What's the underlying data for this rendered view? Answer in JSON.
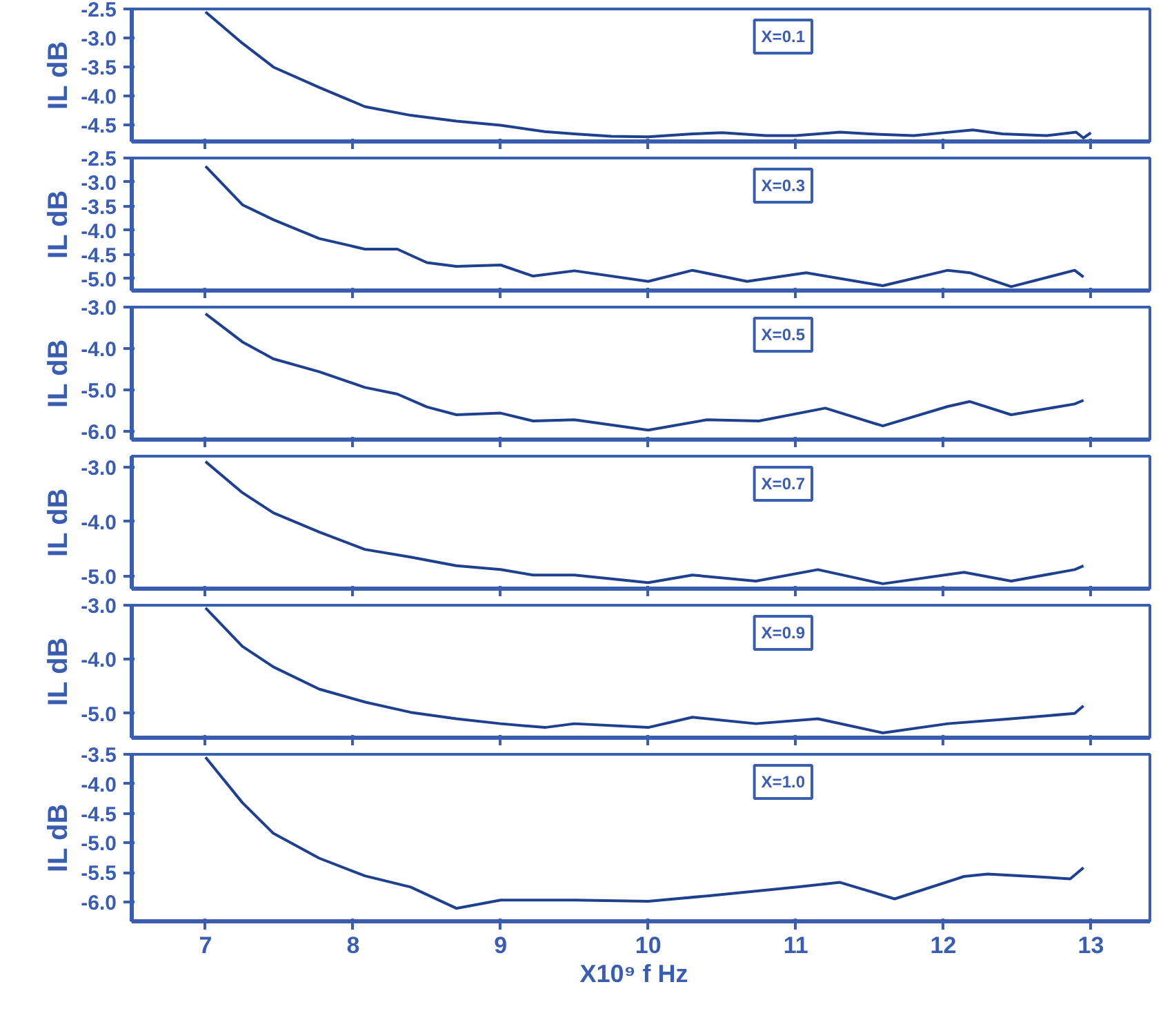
{
  "chart_data": [
    {
      "type": "line",
      "ylabel": "IL dB",
      "annotations": [
        "X=0.1"
      ],
      "tick_labels": "y",
      "xlim": [
        6.5,
        13.4
      ],
      "xticks": [
        7,
        8,
        9,
        10,
        11,
        12,
        13
      ],
      "ylim": [
        -4.78,
        -2.5
      ],
      "yticks": [
        -2.5,
        {
          "value": -3,
          "label": "-3.0"
        },
        -3.5,
        {
          "value": -4,
          "label": "-4.0"
        },
        -4.5
      ],
      "grid": false,
      "series": [
        {
          "color": "#1f3f8f",
          "x": [
            7.0,
            7.25,
            7.46,
            7.77,
            8.08,
            8.39,
            8.7,
            9.0,
            9.3,
            9.5,
            9.75,
            10.0,
            10.3,
            10.5,
            10.8,
            11.0,
            11.3,
            11.5,
            11.8,
            12.0,
            12.2,
            12.4,
            12.7,
            12.9,
            12.95,
            13.0
          ],
          "values": [
            -2.55,
            -3.09,
            -3.5,
            -3.85,
            -4.18,
            -4.33,
            -4.43,
            -4.5,
            -4.61,
            -4.65,
            -4.69,
            -4.7,
            -4.65,
            -4.63,
            -4.68,
            -4.68,
            -4.62,
            -4.65,
            -4.68,
            -4.63,
            -4.58,
            -4.65,
            -4.68,
            -4.62,
            -4.72,
            -4.63
          ]
        }
      ]
    },
    {
      "type": "line",
      "ylabel": "IL dB",
      "annotations": [
        "X=0.3"
      ],
      "tick_labels": "y",
      "xlim": [
        6.5,
        13.4
      ],
      "xticks": [
        7,
        8,
        9,
        10,
        11,
        12,
        13
      ],
      "ylim": [
        -5.25,
        -2.5
      ],
      "yticks": [
        -2.5,
        {
          "value": -3,
          "label": "-3.0"
        },
        -3.5,
        {
          "value": -4,
          "label": "-4.0"
        },
        -4.5,
        {
          "value": -5,
          "label": "-5.0"
        }
      ],
      "grid": false,
      "series": [
        {
          "color": "#1f3f8f",
          "x": [
            7.0,
            7.25,
            7.46,
            7.77,
            8.08,
            8.3,
            8.5,
            8.7,
            9.0,
            9.22,
            9.5,
            10.0,
            10.3,
            10.67,
            11.07,
            11.59,
            12.03,
            12.18,
            12.46,
            12.89,
            12.95
          ],
          "values": [
            -2.67,
            -3.47,
            -3.78,
            -4.17,
            -4.39,
            -4.39,
            -4.67,
            -4.75,
            -4.72,
            -4.95,
            -4.84,
            -5.06,
            -4.83,
            -5.06,
            -4.88,
            -5.15,
            -4.83,
            -4.88,
            -5.17,
            -4.83,
            -4.97
          ]
        }
      ]
    },
    {
      "type": "line",
      "ylabel": "IL dB",
      "annotations": [
        "X=0.5"
      ],
      "tick_labels": "y",
      "xlim": [
        6.5,
        13.4
      ],
      "xticks": [
        7,
        8,
        9,
        10,
        11,
        12,
        13
      ],
      "ylim": [
        -6.2,
        -3.0
      ],
      "yticks": [
        {
          "value": -3,
          "label": "-3.0"
        },
        {
          "value": -4,
          "label": "-4.0"
        },
        {
          "value": -5,
          "label": "-5.0"
        },
        {
          "value": -6,
          "label": "-6.0"
        }
      ],
      "grid": false,
      "series": [
        {
          "color": "#1f3f8f",
          "x": [
            7.0,
            7.25,
            7.46,
            7.77,
            8.08,
            8.3,
            8.5,
            8.7,
            9.0,
            9.22,
            9.5,
            10.0,
            10.4,
            10.75,
            11.2,
            11.59,
            12.03,
            12.18,
            12.46,
            12.89,
            12.95
          ],
          "values": [
            -3.16,
            -3.84,
            -4.25,
            -4.56,
            -4.94,
            -5.1,
            -5.41,
            -5.6,
            -5.56,
            -5.75,
            -5.72,
            -5.97,
            -5.72,
            -5.75,
            -5.44,
            -5.87,
            -5.4,
            -5.28,
            -5.6,
            -5.34,
            -5.25
          ]
        }
      ]
    },
    {
      "type": "line",
      "ylabel": "IL dB",
      "annotations": [
        "X=0.7"
      ],
      "tick_labels": "y",
      "xlim": [
        6.5,
        13.4
      ],
      "xticks": [
        7,
        8,
        9,
        10,
        11,
        12,
        13
      ],
      "ylim": [
        -5.23,
        -2.8
      ],
      "yticks": [
        {
          "value": -3,
          "label": "-3.0"
        },
        {
          "value": -4,
          "label": "-4.0"
        },
        {
          "value": -5,
          "label": "-5.0"
        }
      ],
      "grid": false,
      "series": [
        {
          "color": "#1f3f8f",
          "x": [
            7.0,
            7.25,
            7.46,
            7.77,
            8.08,
            8.39,
            8.7,
            9.0,
            9.22,
            9.5,
            10.0,
            10.3,
            10.73,
            11.15,
            11.59,
            12.14,
            12.46,
            12.89,
            12.95
          ],
          "values": [
            -2.9,
            -3.47,
            -3.84,
            -4.19,
            -4.51,
            -4.65,
            -4.81,
            -4.88,
            -4.98,
            -4.98,
            -5.12,
            -4.98,
            -5.09,
            -4.88,
            -5.14,
            -4.93,
            -5.09,
            -4.88,
            -4.81
          ]
        }
      ]
    },
    {
      "type": "line",
      "ylabel": "IL dB",
      "annotations": [
        "X=0.9"
      ],
      "tick_labels": "y",
      "xlim": [
        6.5,
        13.4
      ],
      "xticks": [
        7,
        8,
        9,
        10,
        11,
        12,
        13
      ],
      "ylim": [
        -5.45,
        -3.0
      ],
      "yticks": [
        {
          "value": -3,
          "label": "-3.0"
        },
        {
          "value": -4,
          "label": "-4.0"
        },
        {
          "value": -5,
          "label": "-5.0"
        }
      ],
      "grid": false,
      "series": [
        {
          "color": "#1f3f8f",
          "x": [
            7.0,
            7.25,
            7.46,
            7.77,
            8.08,
            8.39,
            8.7,
            9.0,
            9.3,
            9.5,
            10.0,
            10.3,
            10.73,
            11.15,
            11.59,
            12.03,
            12.46,
            12.89,
            12.95
          ],
          "values": [
            -3.05,
            -3.76,
            -4.14,
            -4.55,
            -4.79,
            -4.98,
            -5.1,
            -5.19,
            -5.26,
            -5.19,
            -5.26,
            -5.07,
            -5.19,
            -5.1,
            -5.36,
            -5.19,
            -5.1,
            -5.0,
            -4.86
          ]
        }
      ]
    },
    {
      "type": "line",
      "ylabel": "IL dB",
      "xlabel": "X10⁹  f  Hz",
      "annotations": [
        "X=1.0"
      ],
      "xlim": [
        6.5,
        13.4
      ],
      "xticks": [
        7,
        8,
        9,
        10,
        11,
        12,
        13
      ],
      "ylim": [
        -6.33,
        -3.5
      ],
      "yticks": [
        -3.5,
        {
          "value": -4,
          "label": "-4.0"
        },
        -4.5,
        {
          "value": -5,
          "label": "-5.0"
        },
        -5.5,
        {
          "value": -6,
          "label": "-6.0"
        }
      ],
      "grid": false,
      "series": [
        {
          "color": "#1f3f8f",
          "x": [
            7.0,
            7.25,
            7.46,
            7.77,
            8.08,
            8.39,
            8.7,
            9.0,
            9.5,
            10.0,
            10.4,
            11.0,
            11.3,
            11.67,
            12.14,
            12.3,
            12.6,
            12.86,
            12.95
          ],
          "values": [
            -3.55,
            -4.32,
            -4.84,
            -5.26,
            -5.56,
            -5.75,
            -6.11,
            -5.97,
            -5.97,
            -5.99,
            -5.9,
            -5.75,
            -5.67,
            -5.95,
            -5.57,
            -5.53,
            -5.57,
            -5.61,
            -5.42
          ]
        }
      ]
    }
  ]
}
